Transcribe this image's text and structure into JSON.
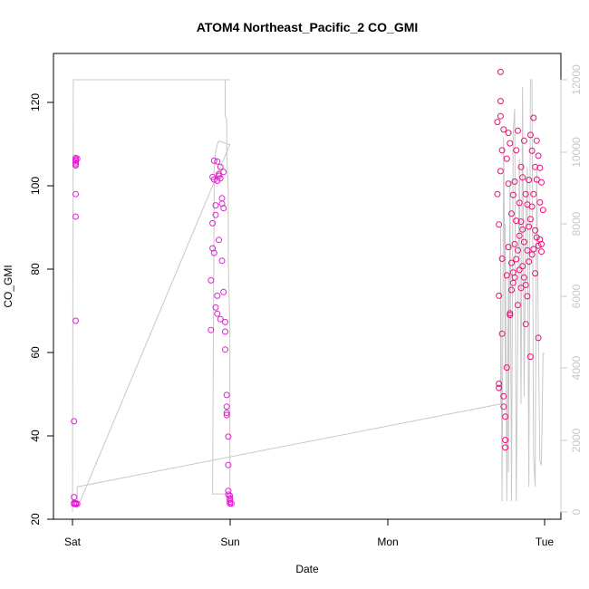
{
  "chart_data": {
    "type": "scatter",
    "title": "ATOM4 Northeast_Pacific_2 CO_GMI",
    "xlabel": "Date",
    "ylabel": "CO_GMI",
    "x_ticks": [
      "Sat",
      "Sun",
      "Mon",
      "Tue"
    ],
    "y_ticks_left": [
      "20",
      "40",
      "60",
      "80",
      "100",
      "120"
    ],
    "y_ticks_right": [
      "0",
      "2000",
      "4000",
      "6000",
      "8000",
      "10000",
      "12000"
    ],
    "ylim_left": [
      20,
      127
    ],
    "ylim_right": [
      -100,
      12150
    ],
    "xlim_days": [
      -0.02,
      3.02
    ],
    "colors": {
      "points_sat_sun": "#e020d0",
      "points_tue": "#e8107a",
      "altitude_line": "#c8c8c8",
      "axes": "#000000"
    },
    "series": [
      {
        "role": "points",
        "x_days": [
          0.01,
          0.01,
          0.01,
          0.01,
          0.02,
          0.02,
          0.02,
          0.02,
          0.02,
          0.02,
          0.02,
          0.02,
          0.02,
          0.02,
          0.02,
          0.02,
          0.03,
          0.03
        ],
        "y": [
          23.7,
          23.9,
          25.3,
          43.5,
          67.6,
          92.6,
          98.0,
          104.9,
          105.6,
          106.3,
          106.7,
          23.6,
          23.8,
          105.2,
          106.0,
          23.8,
          106.5,
          23.7
        ]
      },
      {
        "role": "points",
        "x_days": [
          0.88,
          0.88,
          0.89,
          0.89,
          0.89,
          0.9,
          0.9,
          0.9,
          0.91,
          0.91,
          0.91,
          0.92,
          0.92,
          0.92,
          0.92,
          0.93,
          0.93,
          0.93,
          0.94,
          0.94,
          0.94,
          0.95,
          0.95,
          0.95,
          0.96,
          0.96,
          0.96,
          0.97,
          0.97,
          0.97,
          0.98,
          0.98,
          0.98,
          0.98,
          0.99,
          0.99,
          0.99,
          0.99,
          1.0,
          1.0,
          1.0,
          1.0,
          1.0,
          1.01
        ],
        "y": [
          65.4,
          77.3,
          85.0,
          91.0,
          102.1,
          106.0,
          101.5,
          83.9,
          95.3,
          93.0,
          70.8,
          105.8,
          101.2,
          73.6,
          69.3,
          102.4,
          102.8,
          87.0,
          101.8,
          104.5,
          68.0,
          97.0,
          95.7,
          82.0,
          94.6,
          103.3,
          74.5,
          60.7,
          67.3,
          65.0,
          49.8,
          47.0,
          45.5,
          45.0,
          39.8,
          33.0,
          26.8,
          25.9,
          25.6,
          25.0,
          24.7,
          24.2,
          23.8,
          23.8
        ]
      },
      {
        "role": "points",
        "x_days": [
          2.7,
          2.7,
          2.71,
          2.71,
          2.71,
          2.71,
          2.72,
          2.72,
          2.72,
          2.72,
          2.73,
          2.73,
          2.73,
          2.74,
          2.74,
          2.74,
          2.75,
          2.75,
          2.75,
          2.76,
          2.76,
          2.76,
          2.77,
          2.77,
          2.77,
          2.78,
          2.78,
          2.78,
          2.79,
          2.79,
          2.79,
          2.8,
          2.8,
          2.8,
          2.81,
          2.81,
          2.81,
          2.82,
          2.82,
          2.82,
          2.83,
          2.83,
          2.83,
          2.84,
          2.84,
          2.84,
          2.85,
          2.85,
          2.85,
          2.86,
          2.86,
          2.86,
          2.87,
          2.87,
          2.87,
          2.88,
          2.88,
          2.88,
          2.89,
          2.89,
          2.89,
          2.9,
          2.9,
          2.9,
          2.91,
          2.91,
          2.91,
          2.92,
          2.92,
          2.92,
          2.93,
          2.93,
          2.93,
          2.94,
          2.94,
          2.94,
          2.95,
          2.95,
          2.95,
          2.96,
          2.96,
          2.96,
          2.97,
          2.97,
          2.97,
          2.98,
          2.98,
          2.98,
          2.99
        ],
        "y": [
          115.3,
          98.0,
          90.7,
          73.6,
          52.5,
          51.5,
          127.3,
          120.3,
          116.7,
          103.5,
          64.5,
          108.5,
          82.5,
          49.5,
          47.0,
          113.5,
          44.6,
          39.0,
          37.2,
          106.5,
          78.5,
          56.4,
          112.7,
          100.5,
          85.3,
          110.2,
          69.4,
          69.0,
          93.3,
          81.5,
          75.0,
          97.8,
          79.2,
          76.7,
          101.0,
          86.0,
          78.0,
          108.5,
          91.6,
          82.4,
          113.2,
          84.5,
          71.4,
          95.9,
          88.0,
          79.8,
          104.5,
          91.4,
          75.5,
          102.0,
          89.5,
          80.7,
          110.8,
          86.5,
          78.0,
          98.0,
          76.2,
          66.8,
          95.5,
          84.5,
          73.5,
          101.4,
          90.2,
          81.8,
          112.2,
          92.0,
          59.0,
          108.4,
          95.0,
          83.5,
          116.3,
          98.0,
          84.8,
          104.5,
          89.3,
          79.0,
          110.8,
          101.5,
          87.6,
          107.2,
          85.6,
          63.5,
          104.3,
          96.0,
          87.1,
          100.8,
          86.0,
          84.2,
          94.2
        ]
      },
      {
        "role": "line",
        "x_days": [
          0.0,
          0.005,
          0.01,
          0.015,
          0.02,
          0.03,
          0.05,
          1.0,
          0.97,
          0.97,
          0.98,
          0.98,
          0.99,
          0.99,
          1.0,
          1.0,
          0.89,
          0.9,
          0.9,
          0.91,
          0.92,
          0.93,
          1.0,
          0.03,
          0.03,
          2.72,
          2.72,
          2.73,
          2.74,
          2.75,
          2.75,
          2.76,
          2.77,
          2.77,
          2.78,
          2.79,
          2.8,
          2.81,
          2.82,
          2.83,
          2.84,
          2.85,
          2.86,
          2.87,
          2.88,
          2.89,
          2.9,
          2.91,
          2.92,
          2.93,
          2.94,
          2.95,
          2.96,
          2.97,
          2.98,
          2.99,
          3.0
        ],
        "y_right": [
          0,
          12000,
          12000,
          12000,
          12000,
          12000,
          12000,
          12000,
          12000,
          11000,
          10900,
          10000,
          9000,
          7000,
          5000,
          500,
          500,
          8800,
          9500,
          10000,
          10200,
          10300,
          10200,
          100,
          700,
          3000,
          7900,
          300,
          10400,
          4000,
          8000,
          300,
          6600,
          1100,
          9200,
          300,
          10500,
          11200,
          300,
          5200,
          9800,
          3000,
          11800,
          3200,
          7700,
          9600,
          700,
          12000,
          12000,
          1600,
          700,
          9500,
          4900,
          1400,
          1300,
          4400,
          4400
        ]
      }
    ]
  }
}
